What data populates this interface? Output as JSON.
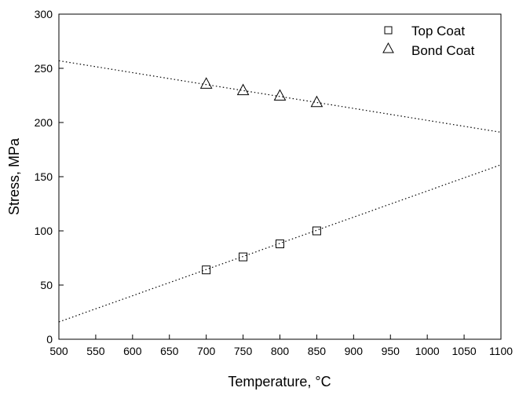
{
  "chart_data": {
    "type": "scatter",
    "title": "",
    "xlabel": "Temperature, °C",
    "ylabel": "Stress, MPa",
    "xlim": [
      500,
      1100
    ],
    "ylim": [
      0,
      300
    ],
    "x_ticks": [
      500,
      550,
      600,
      650,
      700,
      750,
      800,
      850,
      900,
      950,
      1000,
      1050,
      1100
    ],
    "y_ticks": [
      0,
      50,
      100,
      150,
      200,
      250,
      300
    ],
    "grid": false,
    "legend_position": "top-right",
    "series": [
      {
        "name": "Top Coat",
        "marker": "square",
        "x": [
          700,
          750,
          800,
          850
        ],
        "y": [
          64,
          76,
          88,
          100
        ],
        "fit_line": {
          "x": [
            500,
            1100
          ],
          "y": [
            16,
            161
          ]
        }
      },
      {
        "name": "Bond Coat",
        "marker": "triangle",
        "x": [
          700,
          750,
          800,
          850
        ],
        "y": [
          236,
          230,
          225,
          219
        ],
        "fit_line": {
          "x": [
            500,
            1100
          ],
          "y": [
            257,
            191
          ]
        }
      }
    ],
    "colors": {
      "marker": "#000000",
      "axis": "#000000"
    }
  }
}
